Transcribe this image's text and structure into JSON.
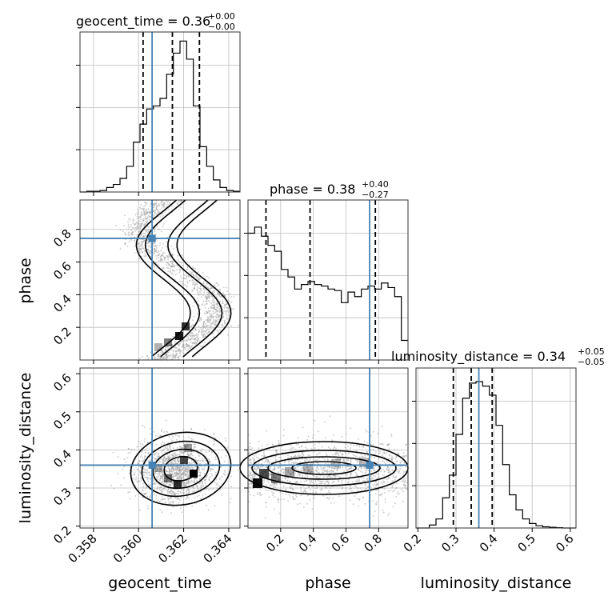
{
  "colors": {
    "truth": "#4682b4",
    "hist": "#000000",
    "grid": "#bfbfbf",
    "scatter": "#9a9a9a"
  },
  "chart_data": {
    "type": "corner",
    "parameters": [
      {
        "name": "geocent_time",
        "range": [
          0.3574,
          0.3645
        ],
        "ticks": [
          "0.358",
          "0.360",
          "0.362",
          "0.364"
        ],
        "truth": 0.3606
      },
      {
        "name": "phase",
        "range": [
          0.0,
          0.98
        ],
        "ticks": [
          "0.2",
          "0.4",
          "0.6",
          "0.8"
        ],
        "truth": 0.745
      },
      {
        "name": "luminosity_distance",
        "range": [
          0.195,
          0.615
        ],
        "ticks": [
          "0.2",
          "0.3",
          "0.4",
          "0.5",
          "0.6"
        ],
        "truth": 0.36
      }
    ],
    "titles": [
      {
        "main": "geocent_time = 0.36",
        "sup": "+0.00",
        "sub": "−0.00"
      },
      {
        "main": "phase = 0.38",
        "sup": "+0.40",
        "sub": "−0.27"
      },
      {
        "main": "luminosity_distance = 0.34",
        "sup": "+0.05",
        "sub": "−0.05"
      }
    ],
    "quantile_lines": [
      [
        0.3602,
        0.3615,
        0.3627
      ],
      [
        0.11,
        0.38,
        0.78
      ],
      [
        0.293,
        0.34,
        0.395
      ]
    ],
    "histograms": [
      {
        "param": "geocent_time",
        "bins": [
          0.3574,
          0.3645
        ],
        "counts": [
          0,
          0.005,
          0.005,
          0.01,
          0.03,
          0.05,
          0.09,
          0.17,
          0.33,
          0.45,
          0.55,
          0.57,
          0.62,
          0.78,
          0.92,
          1.0,
          0.88,
          0.57,
          0.3,
          0.17,
          0.08,
          0.03,
          0.01,
          0.005
        ]
      },
      {
        "param": "phase",
        "bins": [
          0.0,
          0.98
        ],
        "counts": [
          0.84,
          0.88,
          0.82,
          0.76,
          0.72,
          0.6,
          0.55,
          0.47,
          0.5,
          0.52,
          0.5,
          0.49,
          0.47,
          0.46,
          0.38,
          0.45,
          0.42,
          0.47,
          0.49,
          0.47,
          0.51,
          0.48,
          0.42,
          0.13
        ]
      },
      {
        "param": "luminosity_distance",
        "bins": [
          0.195,
          0.615
        ],
        "counts": [
          0,
          0.0,
          0.02,
          0.06,
          0.2,
          0.35,
          0.62,
          0.86,
          0.96,
          0.97,
          0.94,
          0.88,
          0.68,
          0.42,
          0.22,
          0.12,
          0.06,
          0.03,
          0.015,
          0.008,
          0.005,
          0.002,
          0,
          0
        ]
      }
    ],
    "histogram_ylim": [
      0,
      1.06
    ],
    "histogram_yticks": [
      0.28,
      0.56,
      0.84
    ]
  }
}
